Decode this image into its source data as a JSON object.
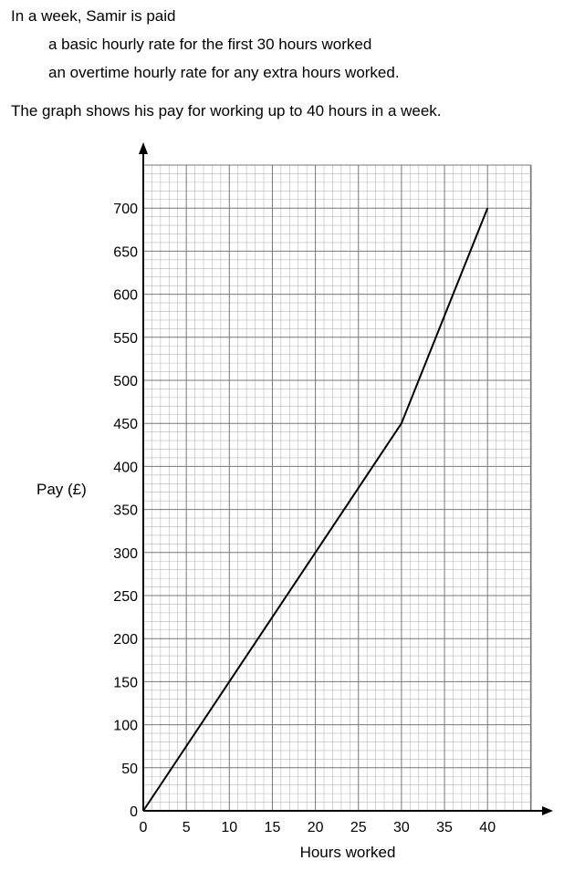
{
  "question": {
    "intro": "In a week, Samir is paid",
    "conditions": [
      "a basic hourly rate for the first 30 hours worked",
      "an overtime hourly rate for any extra hours worked."
    ],
    "description": "The graph shows his pay for working up to 40 hours in a week."
  },
  "chart_data": {
    "type": "line",
    "title": "",
    "xlabel": "Hours worked",
    "ylabel": "Pay (£)",
    "xlim": [
      0,
      45
    ],
    "ylim": [
      0,
      750
    ],
    "x_ticks": [
      0,
      5,
      10,
      15,
      20,
      25,
      30,
      35,
      40
    ],
    "y_ticks": [
      0,
      50,
      100,
      150,
      200,
      250,
      300,
      350,
      400,
      450,
      500,
      550,
      600,
      650,
      700
    ],
    "grid": true,
    "series": [
      {
        "x": [
          0,
          30,
          40
        ],
        "y": [
          0,
          450,
          700
        ],
        "color": "#000000"
      }
    ]
  }
}
